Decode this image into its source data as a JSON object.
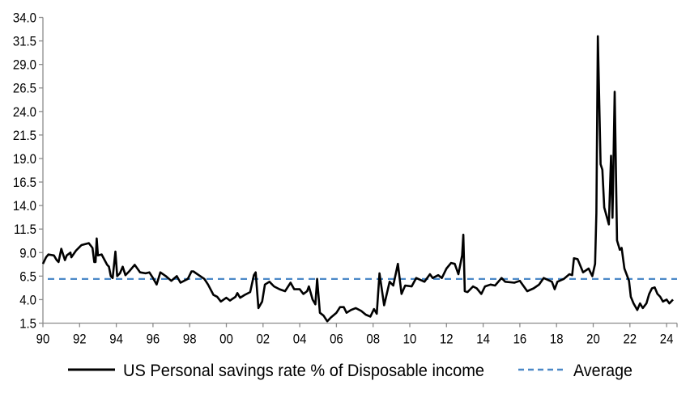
{
  "chart_data": {
    "type": "line",
    "title": "",
    "xlabel": "",
    "ylabel": "",
    "ylim": [
      1.5,
      34.0
    ],
    "xlim": [
      1990,
      2024.4
    ],
    "y_ticks": [
      "1.5",
      "4.0",
      "6.5",
      "9.0",
      "11.5",
      "14.0",
      "16.5",
      "19.0",
      "21.5",
      "24.0",
      "26.5",
      "29.0",
      "31.5",
      "34.0"
    ],
    "x_ticks": [
      "90",
      "92",
      "94",
      "96",
      "98",
      "00",
      "02",
      "04",
      "06",
      "08",
      "10",
      "12",
      "14",
      "16",
      "18",
      "20",
      "22",
      "24"
    ],
    "grid": false,
    "legend_position": "bottom",
    "series": [
      {
        "name": "US Personal savings rate % of Disposable income",
        "color": "#000000",
        "style": "solid",
        "points": [
          [
            1990.0,
            7.8
          ],
          [
            1990.17,
            8.5
          ],
          [
            1990.3,
            8.8
          ],
          [
            1990.6,
            8.7
          ],
          [
            1990.75,
            8.2
          ],
          [
            1990.85,
            8.0
          ],
          [
            1991.0,
            9.4
          ],
          [
            1991.2,
            8.2
          ],
          [
            1991.3,
            8.7
          ],
          [
            1991.5,
            9.0
          ],
          [
            1991.55,
            8.5
          ],
          [
            1991.8,
            9.2
          ],
          [
            1992.0,
            9.6
          ],
          [
            1992.1,
            9.8
          ],
          [
            1992.5,
            10.0
          ],
          [
            1992.7,
            9.5
          ],
          [
            1992.8,
            8.0
          ],
          [
            1992.87,
            8.0
          ],
          [
            1992.93,
            10.5
          ],
          [
            1993.0,
            8.7
          ],
          [
            1993.2,
            8.8
          ],
          [
            1993.5,
            7.7
          ],
          [
            1993.6,
            7.5
          ],
          [
            1993.7,
            6.5
          ],
          [
            1993.8,
            6.3
          ],
          [
            1993.95,
            9.1
          ],
          [
            1994.05,
            6.5
          ],
          [
            1994.2,
            6.8
          ],
          [
            1994.35,
            7.5
          ],
          [
            1994.5,
            6.6
          ],
          [
            1994.7,
            7.0
          ],
          [
            1995.0,
            7.7
          ],
          [
            1995.3,
            6.9
          ],
          [
            1995.6,
            6.8
          ],
          [
            1995.8,
            6.9
          ],
          [
            1996.0,
            6.3
          ],
          [
            1996.2,
            5.6
          ],
          [
            1996.4,
            6.9
          ],
          [
            1996.7,
            6.5
          ],
          [
            1997.0,
            6.0
          ],
          [
            1997.3,
            6.5
          ],
          [
            1997.5,
            5.8
          ],
          [
            1997.9,
            6.2
          ],
          [
            1998.1,
            7.0
          ],
          [
            1998.2,
            7.0
          ],
          [
            1998.5,
            6.6
          ],
          [
            1998.8,
            6.2
          ],
          [
            1999.0,
            5.6
          ],
          [
            1999.3,
            4.5
          ],
          [
            1999.5,
            4.3
          ],
          [
            1999.7,
            3.8
          ],
          [
            2000.0,
            4.2
          ],
          [
            2000.2,
            3.9
          ],
          [
            2000.5,
            4.3
          ],
          [
            2000.6,
            4.7
          ],
          [
            2000.75,
            4.2
          ],
          [
            2001.0,
            4.5
          ],
          [
            2001.3,
            4.8
          ],
          [
            2001.5,
            6.6
          ],
          [
            2001.6,
            6.9
          ],
          [
            2001.75,
            3.1
          ],
          [
            2001.95,
            3.8
          ],
          [
            2002.1,
            5.6
          ],
          [
            2002.35,
            5.9
          ],
          [
            2002.6,
            5.4
          ],
          [
            2002.9,
            5.1
          ],
          [
            2003.2,
            4.9
          ],
          [
            2003.5,
            5.8
          ],
          [
            2003.7,
            5.1
          ],
          [
            2004.0,
            5.1
          ],
          [
            2004.2,
            4.6
          ],
          [
            2004.4,
            4.9
          ],
          [
            2004.5,
            5.4
          ],
          [
            2004.7,
            4.0
          ],
          [
            2004.85,
            3.5
          ],
          [
            2004.95,
            6.2
          ],
          [
            2005.1,
            2.6
          ],
          [
            2005.3,
            2.3
          ],
          [
            2005.5,
            1.7
          ],
          [
            2005.7,
            2.1
          ],
          [
            2006.0,
            2.6
          ],
          [
            2006.2,
            3.2
          ],
          [
            2006.4,
            3.2
          ],
          [
            2006.55,
            2.6
          ],
          [
            2006.8,
            2.9
          ],
          [
            2007.05,
            3.1
          ],
          [
            2007.35,
            2.8
          ],
          [
            2007.6,
            2.4
          ],
          [
            2007.85,
            2.2
          ],
          [
            2008.05,
            3.0
          ],
          [
            2008.2,
            2.5
          ],
          [
            2008.35,
            6.8
          ],
          [
            2008.6,
            3.4
          ],
          [
            2008.9,
            5.9
          ],
          [
            2009.1,
            5.5
          ],
          [
            2009.35,
            7.8
          ],
          [
            2009.55,
            4.6
          ],
          [
            2009.75,
            5.5
          ],
          [
            2010.1,
            5.4
          ],
          [
            2010.35,
            6.3
          ],
          [
            2010.8,
            5.9
          ],
          [
            2011.1,
            6.7
          ],
          [
            2011.25,
            6.3
          ],
          [
            2011.55,
            6.6
          ],
          [
            2011.75,
            6.3
          ],
          [
            2012.0,
            7.3
          ],
          [
            2012.25,
            7.9
          ],
          [
            2012.45,
            7.8
          ],
          [
            2012.65,
            6.7
          ],
          [
            2012.85,
            8.7
          ],
          [
            2012.92,
            10.9
          ],
          [
            2013.0,
            4.9
          ],
          [
            2013.15,
            4.8
          ],
          [
            2013.45,
            5.4
          ],
          [
            2013.65,
            5.2
          ],
          [
            2013.9,
            4.6
          ],
          [
            2014.1,
            5.4
          ],
          [
            2014.4,
            5.6
          ],
          [
            2014.65,
            5.5
          ],
          [
            2015.0,
            6.3
          ],
          [
            2015.2,
            5.9
          ],
          [
            2015.7,
            5.8
          ],
          [
            2016.0,
            6.0
          ],
          [
            2016.4,
            4.9
          ],
          [
            2016.75,
            5.2
          ],
          [
            2017.05,
            5.6
          ],
          [
            2017.3,
            6.3
          ],
          [
            2017.75,
            5.9
          ],
          [
            2017.9,
            5.1
          ],
          [
            2018.05,
            5.9
          ],
          [
            2018.4,
            6.2
          ],
          [
            2018.7,
            6.7
          ],
          [
            2018.85,
            6.6
          ],
          [
            2018.95,
            8.4
          ],
          [
            2019.15,
            8.3
          ],
          [
            2019.45,
            6.9
          ],
          [
            2019.75,
            7.3
          ],
          [
            2019.95,
            6.5
          ],
          [
            2020.1,
            7.8
          ],
          [
            2020.17,
            13.2
          ],
          [
            2020.25,
            32.0
          ],
          [
            2020.4,
            18.4
          ],
          [
            2020.5,
            17.8
          ],
          [
            2020.6,
            13.8
          ],
          [
            2020.85,
            12.0
          ],
          [
            2020.97,
            19.3
          ],
          [
            2021.05,
            12.7
          ],
          [
            2021.17,
            26.1
          ],
          [
            2021.3,
            10.3
          ],
          [
            2021.45,
            9.3
          ],
          [
            2021.55,
            9.5
          ],
          [
            2021.7,
            7.3
          ],
          [
            2021.95,
            6.0
          ],
          [
            2022.05,
            4.3
          ],
          [
            2022.2,
            3.6
          ],
          [
            2022.4,
            2.9
          ],
          [
            2022.55,
            3.6
          ],
          [
            2022.7,
            3.1
          ],
          [
            2022.9,
            3.6
          ],
          [
            2023.05,
            4.6
          ],
          [
            2023.2,
            5.2
          ],
          [
            2023.35,
            5.3
          ],
          [
            2023.5,
            4.6
          ],
          [
            2023.65,
            4.3
          ],
          [
            2023.8,
            3.8
          ],
          [
            2024.0,
            4.0
          ],
          [
            2024.15,
            3.6
          ],
          [
            2024.35,
            4.0
          ]
        ]
      },
      {
        "name": "Average",
        "color": "#4a88c7",
        "style": "dashed",
        "value": 6.2
      }
    ]
  }
}
